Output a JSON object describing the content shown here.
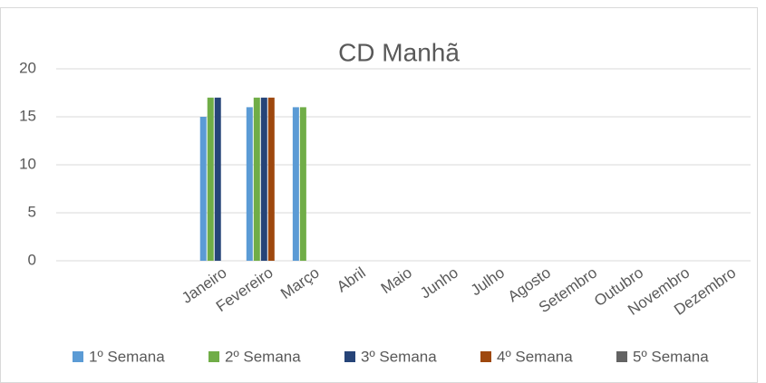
{
  "chart_data": {
    "type": "bar",
    "title": "CD Manhã",
    "categories": [
      null,
      null,
      null,
      "Janeiro",
      "Fevereiro",
      "Março",
      "Abril",
      "Maio",
      "Junho",
      "Julho",
      "Agosto",
      "Setembro",
      "Outubro",
      "Novembro",
      "Dezembro"
    ],
    "series": [
      {
        "name": "1º Semana",
        "color": "#5b9bd5",
        "values": [
          null,
          null,
          null,
          15,
          16,
          16,
          null,
          null,
          null,
          null,
          null,
          null,
          null,
          null,
          null
        ]
      },
      {
        "name": "2º Semana",
        "color": "#70ad47",
        "values": [
          null,
          null,
          null,
          17,
          17,
          16,
          null,
          null,
          null,
          null,
          null,
          null,
          null,
          null,
          null
        ]
      },
      {
        "name": "3º Semana",
        "color": "#264478",
        "values": [
          null,
          null,
          null,
          17,
          17,
          null,
          null,
          null,
          null,
          null,
          null,
          null,
          null,
          null,
          null
        ]
      },
      {
        "name": "4º Semana",
        "color": "#9e480e",
        "values": [
          null,
          null,
          null,
          null,
          17,
          null,
          null,
          null,
          null,
          null,
          null,
          null,
          null,
          null,
          null
        ]
      },
      {
        "name": "5º Semana",
        "color": "#636363",
        "values": [
          null,
          null,
          null,
          null,
          null,
          null,
          null,
          null,
          null,
          null,
          null,
          null,
          null,
          null,
          null
        ]
      }
    ],
    "ylim": [
      0,
      20
    ],
    "yticks": [
      0,
      5,
      10,
      15,
      20
    ],
    "grid": true,
    "legend": "bottom"
  }
}
